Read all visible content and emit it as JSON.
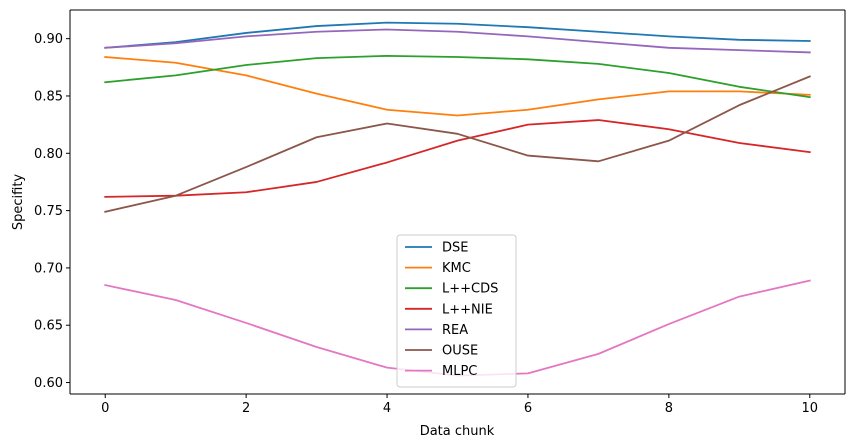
{
  "chart_data": {
    "type": "line",
    "xlabel": "Data chunk",
    "ylabel": "Specifity",
    "xlim": [
      -0.5,
      10.5
    ],
    "ylim": [
      0.59,
      0.925
    ],
    "xticks": [
      0,
      2,
      4,
      6,
      8,
      10
    ],
    "xtick_labels": [
      "0",
      "2",
      "4",
      "6",
      "8",
      "10"
    ],
    "yticks": [
      0.6,
      0.65,
      0.7,
      0.75,
      0.8,
      0.85,
      0.9
    ],
    "ytick_labels": [
      "0.60",
      "0.65",
      "0.70",
      "0.75",
      "0.80",
      "0.85",
      "0.90"
    ],
    "grid": false,
    "legend_position": "lower-center",
    "x": [
      0,
      1,
      2,
      3,
      4,
      5,
      6,
      7,
      8,
      9,
      10
    ],
    "series": [
      {
        "name": "DSE",
        "color": "#1f77b4",
        "values": [
          0.892,
          0.897,
          0.905,
          0.911,
          0.914,
          0.913,
          0.91,
          0.906,
          0.902,
          0.899,
          0.898
        ]
      },
      {
        "name": "KMC",
        "color": "#ff7f0e",
        "values": [
          0.884,
          0.879,
          0.868,
          0.852,
          0.838,
          0.833,
          0.838,
          0.847,
          0.854,
          0.854,
          0.851
        ]
      },
      {
        "name": "L++CDS",
        "color": "#2ca02c",
        "values": [
          0.862,
          0.868,
          0.877,
          0.883,
          0.885,
          0.884,
          0.882,
          0.878,
          0.87,
          0.858,
          0.849
        ]
      },
      {
        "name": "L++NIE",
        "color": "#d62728",
        "values": [
          0.762,
          0.763,
          0.766,
          0.775,
          0.792,
          0.811,
          0.825,
          0.829,
          0.821,
          0.809,
          0.801
        ]
      },
      {
        "name": "REA",
        "color": "#9467bd",
        "values": [
          0.892,
          0.896,
          0.902,
          0.906,
          0.908,
          0.906,
          0.902,
          0.897,
          0.892,
          0.89,
          0.888
        ]
      },
      {
        "name": "OUSE",
        "color": "#8c564b",
        "values": [
          0.749,
          0.763,
          0.788,
          0.814,
          0.826,
          0.817,
          0.798,
          0.793,
          0.811,
          0.842,
          0.867
        ]
      },
      {
        "name": "MLPC",
        "color": "#e377c2",
        "values": [
          0.685,
          0.672,
          0.652,
          0.631,
          0.613,
          0.606,
          0.608,
          0.625,
          0.651,
          0.675,
          0.689
        ]
      }
    ]
  }
}
